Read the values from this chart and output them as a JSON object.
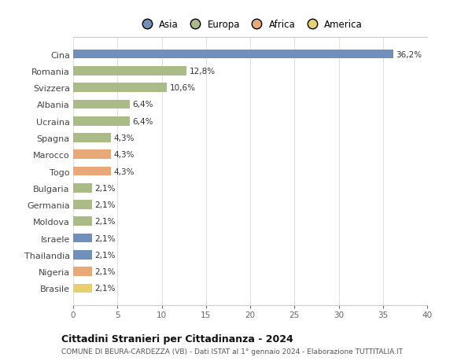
{
  "countries": [
    "Cina",
    "Romania",
    "Svizzera",
    "Albania",
    "Ucraina",
    "Spagna",
    "Marocco",
    "Togo",
    "Bulgaria",
    "Germania",
    "Moldova",
    "Israele",
    "Thailandia",
    "Nigeria",
    "Brasile"
  ],
  "values": [
    36.2,
    12.8,
    10.6,
    6.4,
    6.4,
    4.3,
    4.3,
    4.3,
    2.1,
    2.1,
    2.1,
    2.1,
    2.1,
    2.1,
    2.1
  ],
  "labels": [
    "36,2%",
    "12,8%",
    "10,6%",
    "6,4%",
    "6,4%",
    "4,3%",
    "4,3%",
    "4,3%",
    "2,1%",
    "2,1%",
    "2,1%",
    "2,1%",
    "2,1%",
    "2,1%",
    "2,1%"
  ],
  "continents": [
    "Asia",
    "Europa",
    "Europa",
    "Europa",
    "Europa",
    "Europa",
    "Africa",
    "Africa",
    "Europa",
    "Europa",
    "Europa",
    "Asia",
    "Asia",
    "Africa",
    "America"
  ],
  "colors": {
    "Asia": "#7090bb",
    "Europa": "#aabb88",
    "Africa": "#e8a878",
    "America": "#e8d070"
  },
  "xlim": [
    0,
    40
  ],
  "xticks": [
    0,
    5,
    10,
    15,
    20,
    25,
    30,
    35,
    40
  ],
  "title": "Cittadini Stranieri per Cittadinanza - 2024",
  "subtitle": "COMUNE DI BEURA-CARDEZZA (VB) - Dati ISTAT al 1° gennaio 2024 - Elaborazione TUTTITALIA.IT",
  "bg_color": "#ffffff",
  "grid_color": "#e0e0e0",
  "bar_height": 0.55,
  "legend_order": [
    "Asia",
    "Europa",
    "Africa",
    "America"
  ]
}
